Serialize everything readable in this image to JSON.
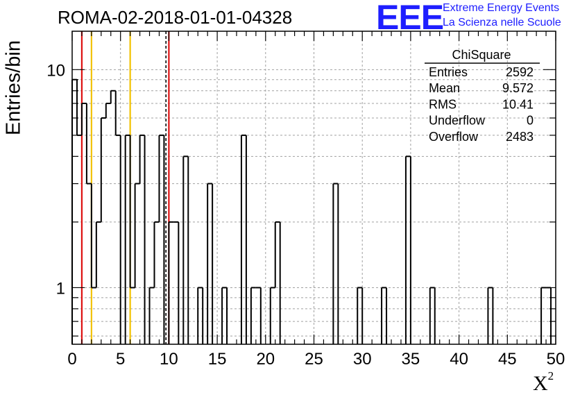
{
  "header": {
    "run_title": "ROMA-02-2018-01-01-04328",
    "logo_text": "EEE",
    "logo_line1": "Extreme Energy Events",
    "logo_line2": "La Scienza nelle Scuole"
  },
  "stats_box": {
    "title": "ChiSquare",
    "rows": [
      {
        "label": "Entries",
        "value": "2592"
      },
      {
        "label": "Mean",
        "value": "9.572"
      },
      {
        "label": "RMS",
        "value": "10.41"
      },
      {
        "label": "Underflow",
        "value": "0"
      },
      {
        "label": "Overflow",
        "value": "2483"
      }
    ]
  },
  "colors": {
    "red_line": "#dd1111",
    "yellow_line": "#f2c200",
    "histogram": "#000000",
    "grid": "#a0a0a0",
    "logo": "#1e1eff"
  },
  "chart_data": {
    "type": "bar",
    "histogram_style": "step",
    "title": "ROMA-02-2018-01-01-04328",
    "xlabel": "X",
    "xlabel_superscript": "2",
    "ylabel": "Entries/bin",
    "xlim": [
      0,
      50
    ],
    "ylim": [
      0.55,
      15
    ],
    "yscale": "log",
    "grid": true,
    "bin_width": 0.5,
    "x_ticks": [
      "0",
      "5",
      "10",
      "15",
      "20",
      "25",
      "30",
      "35",
      "40",
      "45",
      "50"
    ],
    "y_ticks": [
      "1",
      "10"
    ],
    "reference_lines": [
      {
        "x": 1,
        "color": "red",
        "style": "solid"
      },
      {
        "x": 2,
        "color": "yellow",
        "style": "solid"
      },
      {
        "x": 6,
        "color": "yellow",
        "style": "solid"
      },
      {
        "x": 9.7,
        "color": "black",
        "style": "dashed"
      },
      {
        "x": 10,
        "color": "red",
        "style": "solid"
      }
    ],
    "bins": [
      {
        "x": 0.0,
        "y": 9
      },
      {
        "x": 0.5,
        "y": 5
      },
      {
        "x": 1.0,
        "y": 7
      },
      {
        "x": 1.5,
        "y": 3
      },
      {
        "x": 2.0,
        "y": 1
      },
      {
        "x": 2.5,
        "y": 2
      },
      {
        "x": 3.0,
        "y": 6
      },
      {
        "x": 3.5,
        "y": 7
      },
      {
        "x": 4.0,
        "y": 8
      },
      {
        "x": 4.5,
        "y": 5
      },
      {
        "x": 5.5,
        "y": 5
      },
      {
        "x": 6.0,
        "y": 1
      },
      {
        "x": 6.5,
        "y": 3
      },
      {
        "x": 7.0,
        "y": 5
      },
      {
        "x": 8.0,
        "y": 1
      },
      {
        "x": 8.5,
        "y": 2
      },
      {
        "x": 9.0,
        "y": 5
      },
      {
        "x": 10.0,
        "y": 2
      },
      {
        "x": 10.5,
        "y": 2
      },
      {
        "x": 11.5,
        "y": 4
      },
      {
        "x": 13.0,
        "y": 1
      },
      {
        "x": 14.0,
        "y": 3
      },
      {
        "x": 15.5,
        "y": 1
      },
      {
        "x": 17.5,
        "y": 5
      },
      {
        "x": 18.5,
        "y": 1
      },
      {
        "x": 19.0,
        "y": 1
      },
      {
        "x": 20.5,
        "y": 1
      },
      {
        "x": 21.0,
        "y": 2
      },
      {
        "x": 27.0,
        "y": 3
      },
      {
        "x": 29.5,
        "y": 1
      },
      {
        "x": 32.0,
        "y": 1
      },
      {
        "x": 34.5,
        "y": 4
      },
      {
        "x": 37.0,
        "y": 1
      },
      {
        "x": 43.0,
        "y": 1
      },
      {
        "x": 48.5,
        "y": 1
      },
      {
        "x": 49.0,
        "y": 1
      }
    ]
  }
}
